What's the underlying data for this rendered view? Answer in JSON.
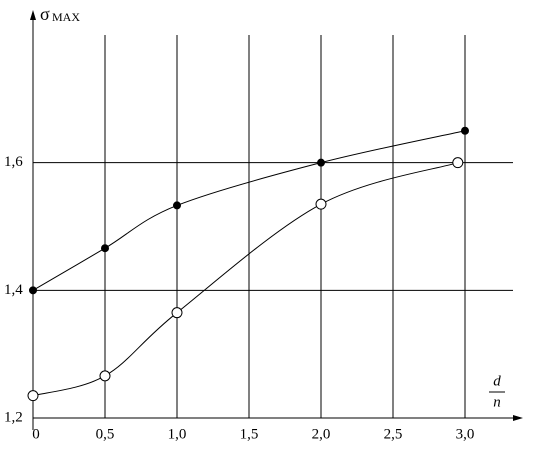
{
  "chart_data": {
    "type": "line",
    "y_label": "σ",
    "y_label_sub": "MAX",
    "x_label": {
      "numerator": "d",
      "denominator": "n"
    },
    "xlim": [
      0,
      3.3
    ],
    "ylim": [
      1.2,
      1.8
    ],
    "xticks": [
      0,
      {
        "value": 0.5,
        "label": "0,5"
      },
      {
        "value": 1.0,
        "label": "1,0"
      },
      {
        "value": 1.5,
        "label": "1,5"
      },
      {
        "value": 2.0,
        "label": "2,0"
      },
      {
        "value": 2.5,
        "label": "2,5"
      },
      {
        "value": 3.0,
        "label": "3,0"
      }
    ],
    "yticks": [
      {
        "value": 1.2,
        "label": "1,2"
      },
      {
        "value": 1.4,
        "label": "1,4"
      },
      {
        "value": 1.6,
        "label": "1,6"
      }
    ],
    "grid": true,
    "series": [
      {
        "marker": "filled",
        "color": "#000000",
        "x": [
          0,
          0.5,
          1.0,
          2.0,
          3.0
        ],
        "values": [
          1.4,
          1.466,
          1.533,
          1.6,
          1.65
        ]
      },
      {
        "marker": "open",
        "color": "#000000",
        "x": [
          0,
          0.5,
          1.0,
          2.0,
          2.95
        ],
        "values": [
          1.235,
          1.266,
          1.365,
          1.535,
          1.6
        ]
      }
    ]
  }
}
